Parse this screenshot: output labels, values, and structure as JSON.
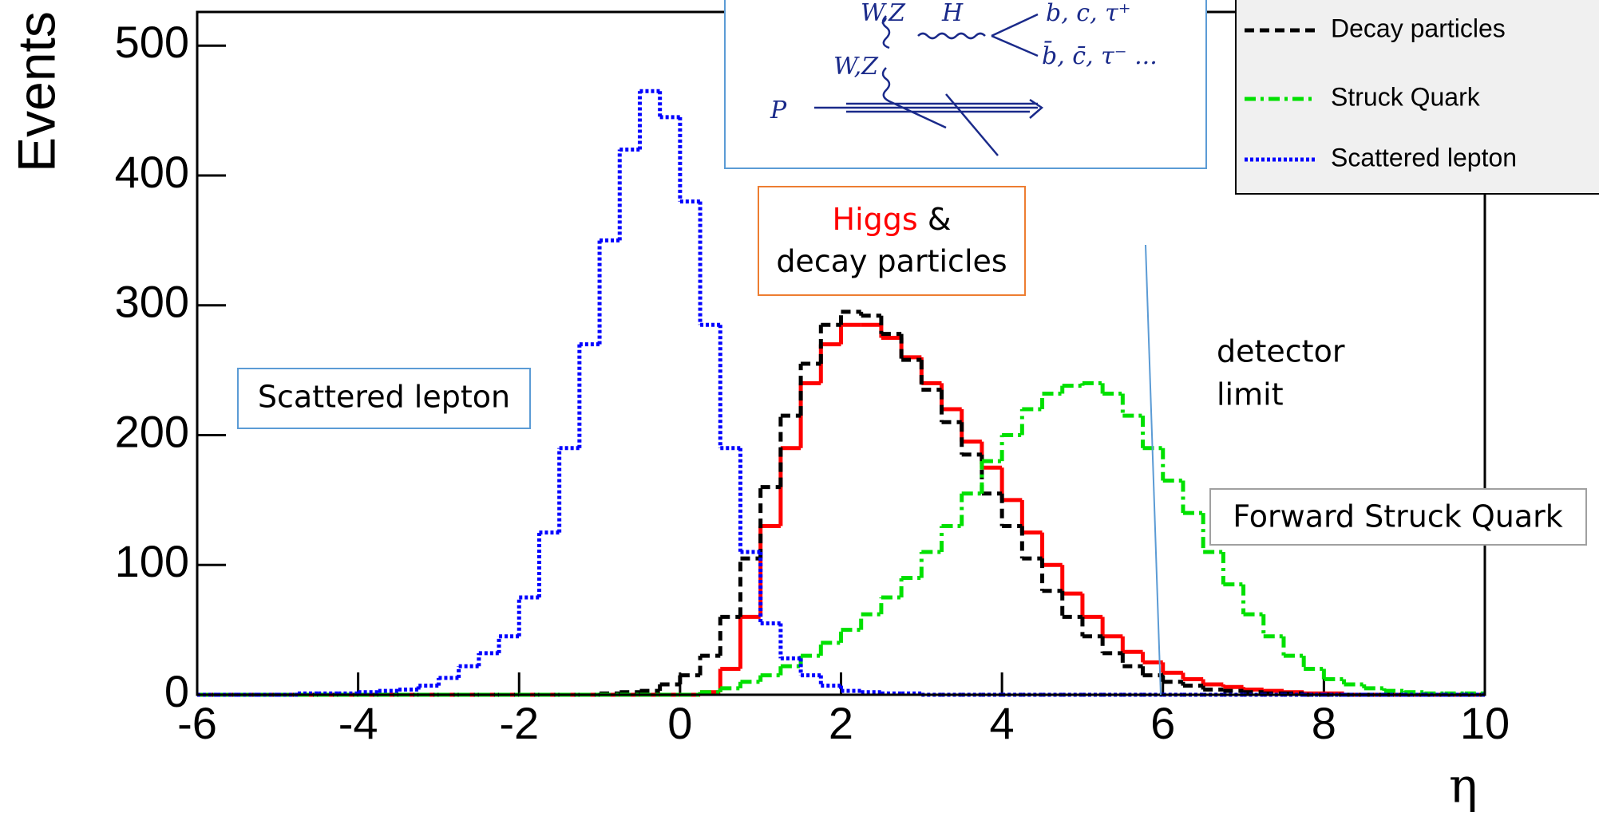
{
  "chart_data": {
    "type": "histogram",
    "ylabel": "Events",
    "xlabel": "η",
    "xlim": [
      -6,
      10
    ],
    "ylim": [
      0,
      526
    ],
    "xticks": [
      -6,
      -4,
      -2,
      0,
      2,
      4,
      6,
      8,
      10
    ],
    "yticks": [
      0,
      100,
      200,
      300,
      400,
      500
    ],
    "bins": [
      -6,
      -5.75,
      -5.5,
      -5.25,
      -5,
      -4.75,
      -4.5,
      -4.25,
      -4,
      -3.75,
      -3.5,
      -3.25,
      -3,
      -2.75,
      -2.5,
      -2.25,
      -2,
      -1.75,
      -1.5,
      -1.25,
      -1,
      -0.75,
      -0.5,
      -0.25,
      0,
      0.25,
      0.5,
      0.75,
      1,
      1.25,
      1.5,
      1.75,
      2,
      2.25,
      2.5,
      2.75,
      3,
      3.25,
      3.5,
      3.75,
      4,
      4.25,
      4.5,
      4.75,
      5,
      5.25,
      5.5,
      5.75,
      6,
      6.25,
      6.5,
      6.75,
      7,
      7.25,
      7.5,
      7.75,
      8,
      8.25,
      8.5,
      8.75,
      9,
      9.25,
      9.5,
      9.75,
      10
    ],
    "legend_position": "upper right",
    "series": [
      {
        "color": "#ff0000",
        "style": "solid",
        "values": [
          0,
          0,
          0,
          0,
          0,
          0,
          0,
          0,
          0,
          0,
          0,
          0,
          0,
          0,
          0,
          0,
          0,
          0,
          0,
          0,
          0,
          0,
          0,
          0,
          0,
          2,
          20,
          60,
          130,
          190,
          240,
          270,
          285,
          285,
          275,
          260,
          240,
          220,
          195,
          175,
          150,
          125,
          100,
          78,
          60,
          45,
          33,
          25,
          17,
          12,
          8,
          6,
          4,
          3,
          2,
          1,
          1,
          0,
          0,
          0,
          0,
          0,
          0,
          0
        ]
      },
      {
        "name": "Decay particles",
        "color": "#000000",
        "style": "dashed",
        "values": [
          0,
          0,
          0,
          0,
          0,
          0,
          0,
          0,
          0,
          0,
          0,
          0,
          0,
          0,
          0,
          0,
          0,
          0,
          0,
          0,
          1,
          2,
          3,
          8,
          15,
          30,
          60,
          105,
          160,
          215,
          255,
          285,
          295,
          292,
          278,
          258,
          235,
          210,
          185,
          155,
          130,
          105,
          80,
          60,
          45,
          32,
          22,
          15,
          10,
          7,
          4,
          3,
          2,
          1,
          1,
          0,
          0,
          0,
          0,
          0,
          0,
          0,
          0,
          0
        ]
      },
      {
        "name": "Struck Quark",
        "color": "#00e000",
        "style": "dashdot",
        "values": [
          0,
          0,
          0,
          0,
          0,
          0,
          0,
          0,
          0,
          0,
          0,
          0,
          0,
          0,
          0,
          0,
          0,
          0,
          0,
          0,
          0,
          0,
          0,
          0,
          0,
          2,
          5,
          10,
          15,
          22,
          30,
          40,
          50,
          62,
          75,
          90,
          110,
          130,
          155,
          180,
          200,
          220,
          232,
          238,
          240,
          232,
          215,
          190,
          165,
          140,
          110,
          85,
          62,
          45,
          30,
          20,
          12,
          8,
          5,
          3,
          2,
          1,
          1,
          1
        ]
      },
      {
        "name": "Scattered lepton",
        "color": "#0000ff",
        "style": "dotted",
        "values": [
          0,
          0,
          0,
          0,
          0,
          1,
          1,
          1,
          2,
          3,
          4,
          7,
          13,
          22,
          32,
          45,
          75,
          125,
          190,
          270,
          350,
          420,
          465,
          445,
          380,
          285,
          190,
          110,
          55,
          28,
          15,
          7,
          3,
          2,
          1,
          1,
          0,
          0,
          0,
          0,
          0,
          0,
          0,
          0,
          0,
          0,
          0,
          0,
          0,
          0,
          0,
          0,
          0,
          0,
          0,
          0,
          0,
          0,
          0,
          0,
          0,
          0,
          0,
          0
        ]
      }
    ],
    "annotations": {
      "higgs": "Higgs",
      "ampersand": "&",
      "decay": "decay particles",
      "lepton": "Scattered lepton",
      "detector": "detector",
      "limit": "limit",
      "forward": "Forward Struck Quark"
    },
    "inset_labels": [
      "W,Z",
      "H",
      "b, c, τ⁺",
      "b̄, c̄, τ⁻ ...",
      "W,Z",
      "P"
    ]
  }
}
